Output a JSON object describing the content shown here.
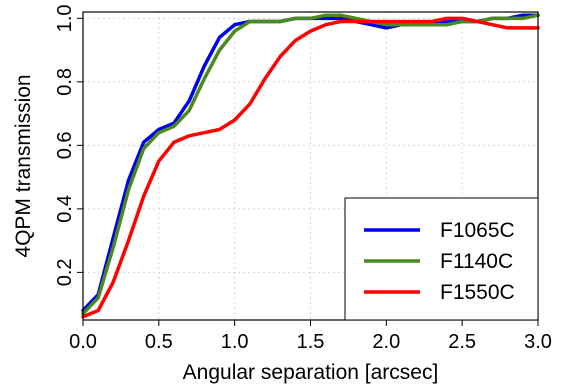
{
  "chart_data": {
    "type": "line",
    "xlabel": "Angular separation [arcsec]",
    "ylabel": "4QPM transmission",
    "xlim": [
      0.0,
      3.0
    ],
    "ylim": [
      0.05,
      1.02
    ],
    "xticks": [
      "0.0",
      "0.5",
      "1.0",
      "1.5",
      "2.0",
      "2.5",
      "3.0"
    ],
    "yticks": [
      "0.2",
      "0.4",
      "0.6",
      "0.8",
      "1.0"
    ],
    "grid": true,
    "legend_position": "bottom-right",
    "series": [
      {
        "name": "F1065C",
        "color": "#0000ee",
        "x": [
          0.0,
          0.1,
          0.2,
          0.3,
          0.4,
          0.5,
          0.6,
          0.7,
          0.8,
          0.9,
          1.0,
          1.1,
          1.2,
          1.3,
          1.4,
          1.5,
          1.6,
          1.7,
          1.8,
          1.9,
          2.0,
          2.1,
          2.2,
          2.3,
          2.4,
          2.5,
          2.6,
          2.7,
          2.8,
          2.9,
          3.0
        ],
        "y": [
          0.08,
          0.13,
          0.31,
          0.49,
          0.61,
          0.65,
          0.67,
          0.74,
          0.85,
          0.94,
          0.98,
          0.99,
          0.99,
          0.99,
          1.0,
          1.0,
          1.0,
          1.0,
          0.99,
          0.98,
          0.97,
          0.98,
          0.98,
          0.99,
          0.99,
          0.99,
          0.99,
          1.0,
          1.0,
          1.01,
          1.01
        ]
      },
      {
        "name": "F1140C",
        "color": "#4a8a1c",
        "x": [
          0.0,
          0.1,
          0.2,
          0.3,
          0.4,
          0.5,
          0.6,
          0.7,
          0.8,
          0.9,
          1.0,
          1.1,
          1.2,
          1.3,
          1.4,
          1.5,
          1.6,
          1.7,
          1.8,
          1.9,
          2.0,
          2.1,
          2.2,
          2.3,
          2.4,
          2.5,
          2.6,
          2.7,
          2.8,
          2.9,
          3.0
        ],
        "y": [
          0.07,
          0.12,
          0.28,
          0.46,
          0.59,
          0.64,
          0.66,
          0.71,
          0.81,
          0.9,
          0.96,
          0.99,
          0.99,
          0.99,
          1.0,
          1.0,
          1.01,
          1.01,
          1.0,
          0.99,
          0.98,
          0.98,
          0.98,
          0.98,
          0.98,
          0.99,
          0.99,
          1.0,
          1.0,
          1.0,
          1.01
        ]
      },
      {
        "name": "F1550C",
        "color": "#ff0000",
        "x": [
          0.0,
          0.1,
          0.2,
          0.3,
          0.4,
          0.5,
          0.6,
          0.7,
          0.8,
          0.9,
          1.0,
          1.1,
          1.2,
          1.3,
          1.4,
          1.5,
          1.6,
          1.7,
          1.8,
          1.9,
          2.0,
          2.1,
          2.2,
          2.3,
          2.4,
          2.5,
          2.6,
          2.7,
          2.8,
          2.9,
          3.0
        ],
        "y": [
          0.06,
          0.08,
          0.17,
          0.3,
          0.44,
          0.55,
          0.61,
          0.63,
          0.64,
          0.65,
          0.68,
          0.73,
          0.81,
          0.88,
          0.93,
          0.96,
          0.98,
          0.99,
          0.99,
          0.99,
          0.99,
          0.99,
          0.99,
          0.99,
          1.0,
          1.0,
          0.99,
          0.98,
          0.97,
          0.97,
          0.97
        ]
      }
    ]
  }
}
